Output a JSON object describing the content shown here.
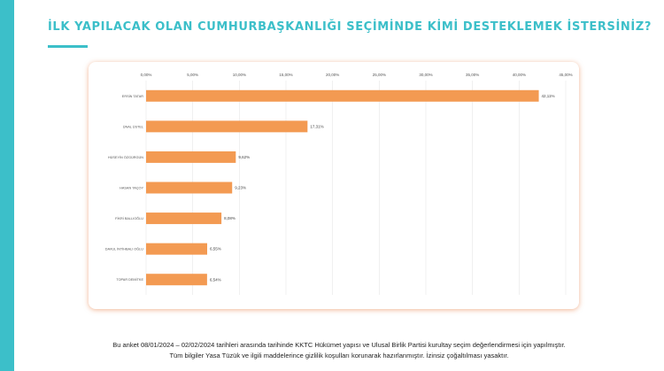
{
  "title": "İLK YAPILACAK OLAN CUMHURBAŞKANLIĞI SEÇİMİNDE KİMİ DESTEKLEMEK İSTERSİNİZ?",
  "footnotes": {
    "line1": "Bu anket 08/01/2024 – 02/02/2024 tarihleri arasında tarihinde KKTC Hükümet yapısı ve Ulusal Birlik Partisi kurultay seçim değerlendirmesi için yapılmıştır.",
    "line2": "Tüm bilgiler Yasa Tüzük ve ilgili maddelerince gizlilik koşulları korunarak hazırlanmıştır.  İzinsiz çoğaltılması yasaktır."
  },
  "colors": {
    "accent": "#3cbfc9",
    "bar": "#f39a52",
    "grid": "#e6e6e6"
  },
  "chart_data": {
    "type": "bar",
    "orientation": "horizontal",
    "categories": [
      "ERSİN TATAR",
      "ÜNAL ÜSTEL",
      "HÜSEYİN ÖZGÜRGÜN",
      "HASAN TAÇOY",
      "FİKRİ BALLIOĞLU",
      "DAVUL İNTİHBALI OĞLU",
      "TOPAR DEMİTKE"
    ],
    "values": [
      42.11,
      17.31,
      9.62,
      9.23,
      8.08,
      6.55,
      6.54
    ],
    "value_labels": [
      "42,11%",
      "17,31%",
      "9,62%",
      "9,23%",
      "8,08%",
      "6,55%",
      "6,54%"
    ],
    "xlim": [
      0,
      45
    ],
    "ticks": [
      0,
      5,
      10,
      15,
      20,
      25,
      30,
      35,
      40,
      45
    ],
    "tick_labels": [
      "0,00%",
      "5,00%",
      "10,00%",
      "15,00%",
      "20,00%",
      "25,00%",
      "30,00%",
      "35,00%",
      "40,00%",
      "45,00%"
    ],
    "grid": true,
    "legend": "none"
  }
}
